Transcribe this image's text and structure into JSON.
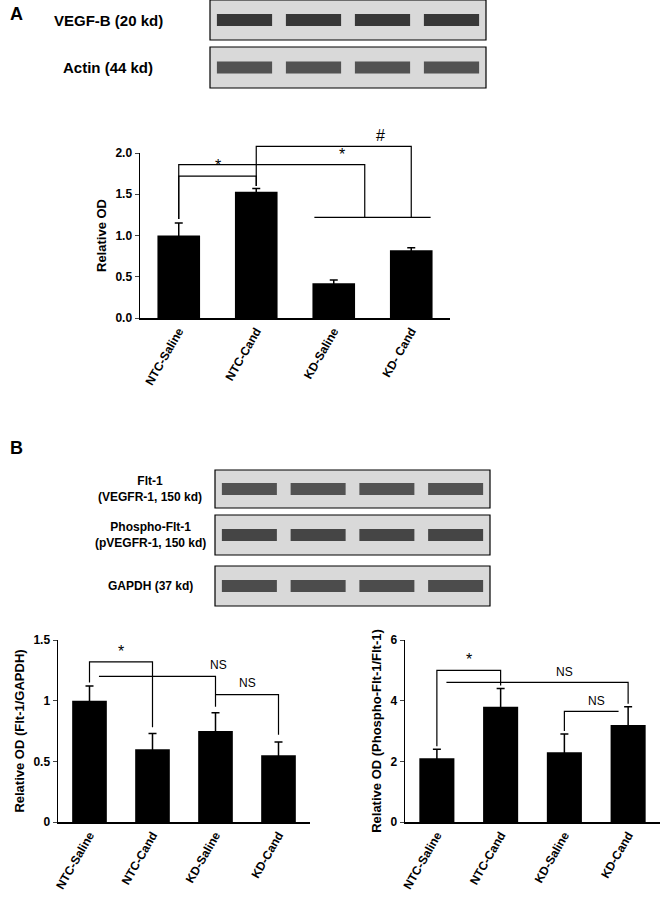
{
  "panels": [
    "A",
    "B"
  ],
  "blots": [
    {
      "rows": [
        [
          "VEGF-B (20 kd)"
        ],
        [
          "Actin (44 kd)"
        ]
      ]
    },
    {
      "rows": [
        [
          "Flt-1",
          "(VEGFR-1, 150 kd)"
        ],
        [
          "Phospho-Flt-1",
          "(pVEGFR-1, 150 kd)"
        ],
        [
          "GAPDH (37 kd)"
        ]
      ]
    }
  ],
  "chart_data": [
    {
      "type": "bar",
      "y_label": "Relative OD",
      "categories": [
        "NTC-Saline",
        "NTC-Cand",
        "KD-Saline",
        "KD- Cand"
      ],
      "values": [
        1.0,
        1.53,
        0.42,
        0.82
      ],
      "errors": [
        0.15,
        0.04,
        0.04,
        0.03
      ],
      "color": "#000000",
      "ylim": [
        0,
        2
      ],
      "yticks": [
        {
          "value": 0,
          "label": "0.0"
        },
        {
          "value": 0.5,
          "label": "0.5"
        },
        {
          "value": 1,
          "label": "1.0"
        },
        {
          "value": 1.5,
          "label": "1.5"
        },
        {
          "value": 2,
          "label": "2.0"
        }
      ],
      "grid": false,
      "annotations": [
        "*",
        "*",
        "#"
      ]
    },
    {
      "type": "bar",
      "y_label": "Relative OD (Flt-1/GAPDH)",
      "categories": [
        "NTC-Saline",
        "NTC-Cand",
        "KD-Saline",
        "KD-Cand"
      ],
      "values": [
        1.0,
        0.6,
        0.75,
        0.55
      ],
      "errors": [
        0.12,
        0.13,
        0.15,
        0.11
      ],
      "color": "#000000",
      "ylim": [
        0,
        1.5
      ],
      "yticks": [
        0,
        0.5,
        1,
        1.5
      ],
      "grid": false,
      "annotations": [
        "*",
        "NS",
        "NS"
      ]
    },
    {
      "type": "bar",
      "y_label": "Relative OD (Phospho-Flt-1/Flt-1)",
      "categories": [
        "NTC-Saline",
        "NTC-Cand",
        "KD-Saline",
        "KD-Cand"
      ],
      "values": [
        2.1,
        3.8,
        2.3,
        3.2
      ],
      "errors": [
        0.3,
        0.6,
        0.6,
        0.6
      ],
      "color": "#000000",
      "ylim": [
        0,
        6
      ],
      "yticks": [
        0,
        2,
        4,
        6
      ],
      "grid": false,
      "annotations": [
        "*",
        "NS",
        "NS"
      ]
    }
  ]
}
